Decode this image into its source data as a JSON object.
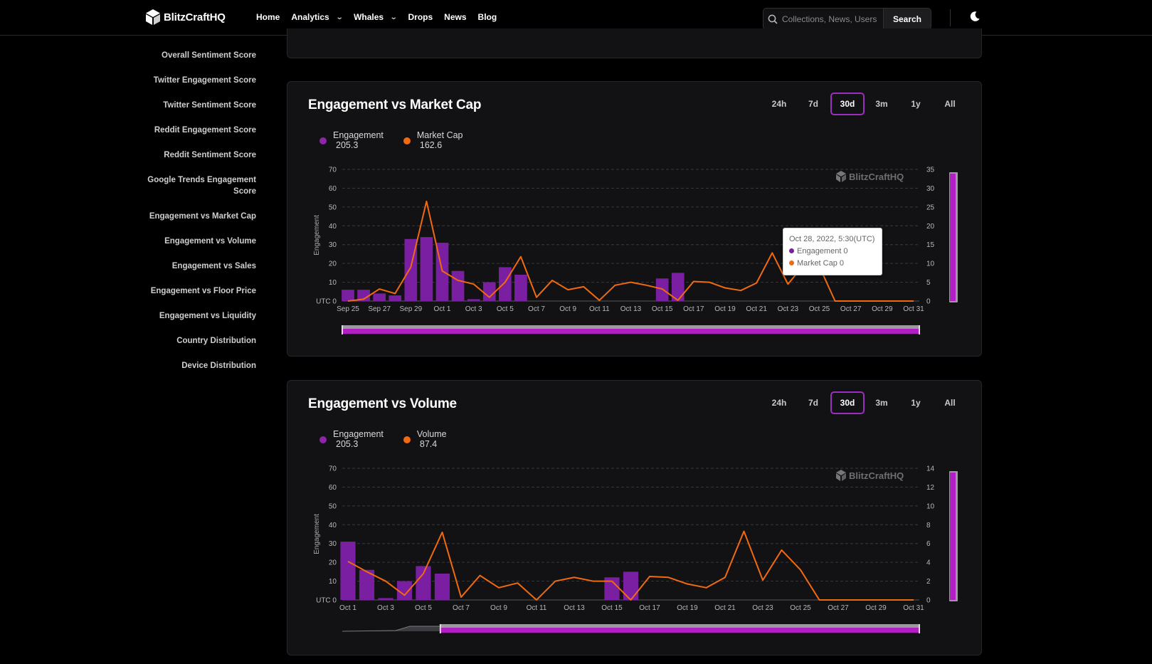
{
  "brand": {
    "name": "BlitzCraftHQ"
  },
  "nav": [
    {
      "label": "Home",
      "dropdown": false
    },
    {
      "label": "Analytics",
      "dropdown": true
    },
    {
      "label": "Whales",
      "dropdown": true
    },
    {
      "label": "Drops",
      "dropdown": false
    },
    {
      "label": "News",
      "dropdown": false
    },
    {
      "label": "Blog",
      "dropdown": false
    }
  ],
  "search": {
    "placeholder": "Collections, News, Users",
    "button": "Search"
  },
  "sidebar": [
    "Overall Sentiment Score",
    "Twitter Engagement Score",
    "Twitter Sentiment Score",
    "Reddit Engagement Score",
    "Reddit Sentiment Score",
    "Google Trends Engagement Score",
    "Engagement vs Market Cap",
    "Engagement vs Volume",
    "Engagement vs Sales",
    "Engagement vs Floor Price",
    "Engagement vs Liquidity",
    "Country Distribution",
    "Device Distribution"
  ],
  "ranges": [
    "24h",
    "7d",
    "30d",
    "3m",
    "1y",
    "All"
  ],
  "colors": {
    "engagement": "#7b1fa2",
    "line": "#f06a10",
    "active": "#9b2fbf",
    "slider": "#b01ec4"
  },
  "watermark": "BlitzCraftHQ",
  "chart_data": [
    {
      "type": "bar",
      "title": "Engagement vs Market Cap",
      "active_range": "30d",
      "legend": [
        {
          "name": "Engagement",
          "value": "205.3"
        },
        {
          "name": "Market Cap",
          "value": "162.6"
        }
      ],
      "ylabel": "Engagement",
      "ylim": [
        0,
        70
      ],
      "y2lim": [
        0,
        35
      ],
      "yticks": [
        "UTC  0",
        "10",
        "20",
        "30",
        "40",
        "50",
        "60",
        "70"
      ],
      "y2ticks": [
        "0",
        "5",
        "10",
        "15",
        "20",
        "25",
        "30",
        "35"
      ],
      "x_tick_labels": [
        "Sep 25",
        "Sep 27",
        "Sep 29",
        "Oct 1",
        "Oct 3",
        "Oct 5",
        "Oct 7",
        "Oct 9",
        "Oct 11",
        "Oct 13",
        "Oct 15",
        "Oct 17",
        "Oct 19",
        "Oct 21",
        "Oct 23",
        "Oct 25",
        "Oct 27",
        "Oct 29",
        "Oct 31"
      ],
      "series": [
        {
          "name": "Engagement",
          "kind": "bar",
          "values": [
            6,
            6,
            4,
            3,
            33,
            34,
            31,
            16,
            1,
            10,
            18,
            14,
            0,
            0,
            0,
            0,
            0,
            0,
            0,
            0,
            12,
            15,
            0,
            0,
            0,
            0,
            0,
            0,
            0,
            0,
            0,
            0,
            0,
            0,
            0,
            0,
            0
          ]
        },
        {
          "name": "Market Cap",
          "kind": "line",
          "values": [
            0,
            0.5,
            3.2,
            2,
            9,
            26.5,
            8,
            5.5,
            4.5,
            1,
            5,
            11.8,
            1,
            5.5,
            3,
            3.8,
            0.2,
            4.2,
            5,
            4.2,
            3.2,
            0.2,
            5.2,
            5,
            3.5,
            2.8,
            4.8,
            12.8,
            4.5,
            9.5,
            9.2,
            0,
            0,
            0,
            0,
            0,
            0
          ]
        }
      ],
      "tooltip": {
        "title": "Oct 28, 2022, 5:30(UTC)",
        "rows": [
          "Engagement 0",
          "Market Cap 0"
        ]
      }
    },
    {
      "type": "bar",
      "title": "Engagement vs Volume",
      "active_range": "30d",
      "legend": [
        {
          "name": "Engagement",
          "value": "205.3"
        },
        {
          "name": "Volume",
          "value": "87.4"
        }
      ],
      "ylabel": "Engagement",
      "ylim": [
        0,
        70
      ],
      "y2lim": [
        0,
        14
      ],
      "yticks": [
        "UTC  0",
        "10",
        "20",
        "30",
        "40",
        "50",
        "60",
        "70"
      ],
      "y2ticks": [
        "0",
        "2",
        "4",
        "6",
        "8",
        "10",
        "12",
        "14"
      ],
      "x_tick_labels": [
        "Oct 1",
        "Oct 3",
        "Oct 5",
        "Oct 7",
        "Oct 9",
        "Oct 11",
        "Oct 13",
        "Oct 15",
        "Oct 17",
        "Oct 19",
        "Oct 21",
        "Oct 23",
        "Oct 25",
        "Oct 27",
        "Oct 29",
        "Oct 31"
      ],
      "series": [
        {
          "name": "Engagement",
          "kind": "bar",
          "values": [
            31,
            16,
            1,
            10,
            18,
            14,
            0,
            0,
            0,
            0,
            0,
            0,
            0,
            0,
            12,
            15,
            0,
            0,
            0,
            0,
            0,
            0,
            0,
            0,
            0,
            0,
            0,
            0,
            0,
            0,
            0
          ]
        },
        {
          "name": "Volume",
          "kind": "line",
          "values": [
            4.1,
            3,
            2,
            0.5,
            2.8,
            7.2,
            0.3,
            2.6,
            1.3,
            1.8,
            0,
            2,
            2.4,
            2,
            2,
            0,
            2.5,
            2.4,
            1.7,
            1.3,
            2.4,
            7.3,
            2.1,
            5.3,
            3.2,
            0,
            0,
            0,
            0,
            0,
            0
          ]
        }
      ]
    }
  ]
}
